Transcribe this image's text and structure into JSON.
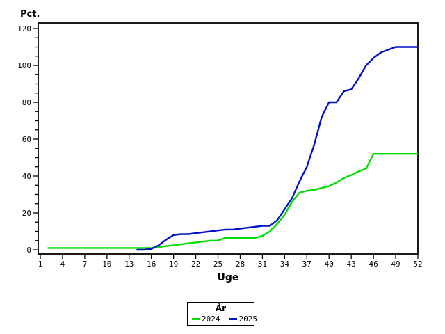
{
  "page": {
    "background": "#ffffff"
  },
  "axes": {
    "y_title": "Pct.",
    "x_title": "Uge"
  },
  "legend": {
    "title": "År"
  },
  "chart_data": {
    "type": "line",
    "title": "",
    "xlabel": "Uge",
    "ylabel": "Pct.",
    "xlim": [
      1,
      52
    ],
    "ylim": [
      0,
      120
    ],
    "x_ticks": [
      1,
      4,
      7,
      10,
      13,
      16,
      19,
      22,
      25,
      28,
      31,
      34,
      37,
      40,
      43,
      46,
      49,
      52
    ],
    "y_ticks": [
      0,
      20,
      40,
      60,
      80,
      100,
      120
    ],
    "y_minor_tick_step": 5,
    "grid": false,
    "frame": true,
    "legend_position": "bottom-center",
    "legend_title": "År",
    "colors": {
      "axis": "#000000",
      "series_2024": "#00dd00",
      "series_2025": "#0011cc"
    },
    "series": [
      {
        "name": "2024",
        "color": "#00dd00",
        "x": [
          2,
          3,
          4,
          5,
          6,
          7,
          8,
          9,
          10,
          11,
          12,
          13,
          14,
          15,
          16,
          17,
          18,
          19,
          20,
          21,
          22,
          23,
          24,
          25,
          26,
          27,
          28,
          29,
          30,
          31,
          32,
          33,
          34,
          35,
          36,
          37,
          38,
          39,
          40,
          41,
          42,
          43,
          44,
          45,
          46,
          47,
          48,
          49,
          50,
          51,
          52
        ],
        "y": [
          1,
          1,
          1,
          1,
          1,
          1,
          1,
          1,
          1,
          1,
          1,
          1,
          1,
          1,
          1,
          1.5,
          2,
          2.5,
          3,
          3.5,
          4,
          4.5,
          5,
          5,
          6.5,
          6.5,
          6.5,
          6.5,
          6.5,
          7.5,
          10,
          14,
          19,
          26,
          31,
          32,
          32.5,
          33.5,
          34.5,
          36.5,
          39,
          40.5,
          42.5,
          44,
          52,
          52,
          52,
          52,
          52,
          52,
          52
        ]
      },
      {
        "name": "2025",
        "color": "#0011cc",
        "x": [
          14,
          15,
          16,
          17,
          18,
          19,
          20,
          21,
          22,
          23,
          24,
          25,
          26,
          27,
          28,
          29,
          30,
          31,
          32,
          33,
          34,
          35,
          36,
          37,
          38,
          39,
          40,
          41,
          42,
          43,
          44,
          45,
          46,
          47,
          48,
          49,
          50,
          51,
          52
        ],
        "y": [
          0,
          0,
          0.5,
          2.5,
          5.5,
          8,
          8.5,
          8.5,
          9,
          9.5,
          10,
          10.5,
          11,
          11,
          11.5,
          12,
          12.5,
          13,
          13,
          16,
          22,
          28,
          37,
          45,
          57,
          72,
          80,
          80,
          86,
          87,
          93,
          100,
          104,
          107,
          108.5,
          110,
          110,
          110,
          110
        ]
      }
    ]
  }
}
